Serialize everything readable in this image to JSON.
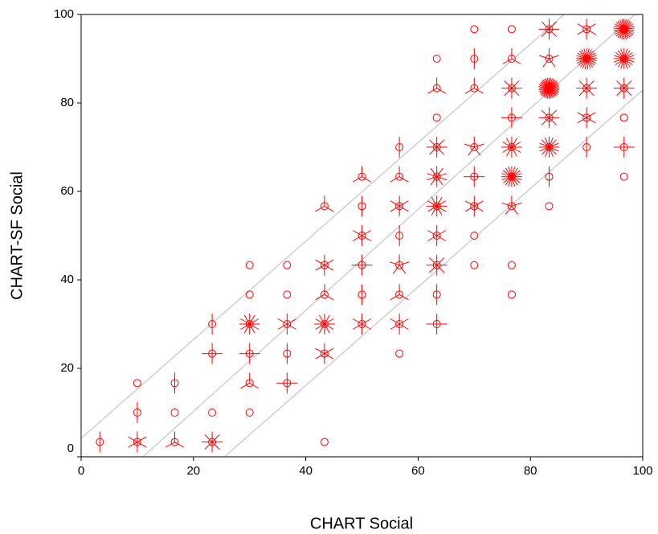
{
  "chart_data": {
    "type": "sunflower",
    "xlabel": "CHART  Social",
    "ylabel": "CHART-SF Social",
    "xlim": [
      0,
      100
    ],
    "ylim": [
      0,
      100
    ],
    "xticks": [
      0,
      20,
      40,
      60,
      80,
      100
    ],
    "yticks": [
      0,
      20,
      40,
      60,
      80,
      100
    ],
    "color": "#ff0000",
    "x": [
      70,
      76.67,
      83.33,
      90,
      96.67,
      63.33,
      70,
      76.67,
      83.33,
      90,
      96.67,
      63.33,
      70,
      76.67,
      83.33,
      90,
      96.67,
      63.33,
      76.67,
      83.33,
      90,
      96.67,
      56.67,
      63.33,
      70,
      76.67,
      83.33,
      90,
      96.67,
      50,
      56.67,
      63.33,
      70,
      76.67,
      83.33,
      96.67,
      43.33,
      50,
      56.67,
      63.33,
      70,
      76.67,
      83.33,
      50,
      56.67,
      63.33,
      70,
      30,
      36.67,
      43.33,
      50,
      56.67,
      63.33,
      70,
      76.67,
      30,
      36.67,
      43.33,
      50,
      56.67,
      63.33,
      76.67,
      23.33,
      30,
      36.67,
      43.33,
      50,
      56.67,
      63.33,
      23.33,
      30,
      36.67,
      43.33,
      56.67,
      10,
      16.67,
      30,
      36.67,
      10,
      16.67,
      23.33,
      30,
      3.33,
      10,
      16.67,
      23.33,
      43.33
    ],
    "values": [
      96.67,
      96.67,
      96.67,
      96.67,
      96.67,
      90,
      90,
      90,
      90,
      90,
      90,
      83.33,
      83.33,
      83.33,
      83.33,
      83.33,
      83.33,
      76.67,
      76.67,
      76.67,
      76.67,
      76.67,
      70,
      70,
      70,
      70,
      70,
      70,
      70,
      63.33,
      63.33,
      63.33,
      63.33,
      63.33,
      63.33,
      63.33,
      56.67,
      56.67,
      56.67,
      56.67,
      56.67,
      56.67,
      56.67,
      50,
      50,
      50,
      50,
      43.33,
      43.33,
      43.33,
      43.33,
      43.33,
      43.33,
      43.33,
      43.33,
      36.67,
      36.67,
      36.67,
      36.67,
      36.67,
      36.67,
      36.67,
      30,
      30,
      30,
      30,
      30,
      30,
      30,
      23.33,
      23.33,
      23.33,
      23.33,
      23.33,
      16.67,
      16.67,
      16.67,
      16.67,
      10,
      10,
      10,
      10,
      3.33,
      3.33,
      3.33,
      3.33,
      3.33
    ],
    "counts": [
      1,
      1,
      8,
      6,
      30,
      1,
      2,
      3,
      5,
      25,
      20,
      3,
      3,
      8,
      40,
      8,
      8,
      1,
      4,
      8,
      6,
      1,
      2,
      8,
      5,
      12,
      16,
      2,
      4,
      3,
      3,
      10,
      4,
      20,
      2,
      1,
      3,
      2,
      6,
      12,
      6,
      5,
      1,
      6,
      2,
      6,
      1,
      1,
      1,
      6,
      4,
      5,
      8,
      1,
      1,
      1,
      1,
      3,
      2,
      3,
      2,
      1,
      2,
      12,
      6,
      12,
      6,
      6,
      4,
      4,
      4,
      2,
      6,
      1,
      1,
      2,
      3,
      4,
      2,
      1,
      1,
      1,
      2,
      6,
      3,
      8,
      1
    ],
    "reference_lines": [
      {
        "x": [
          0,
          86
        ],
        "y": [
          4.2,
          100
        ],
        "color": "#bbbbbb"
      },
      {
        "x": [
          11,
          98.6
        ],
        "y": [
          0,
          100
        ],
        "color": "#bbbbbb"
      },
      {
        "x": [
          25.5,
          100
        ],
        "y": [
          0,
          82.9
        ],
        "color": "#bbbbbb"
      }
    ]
  }
}
